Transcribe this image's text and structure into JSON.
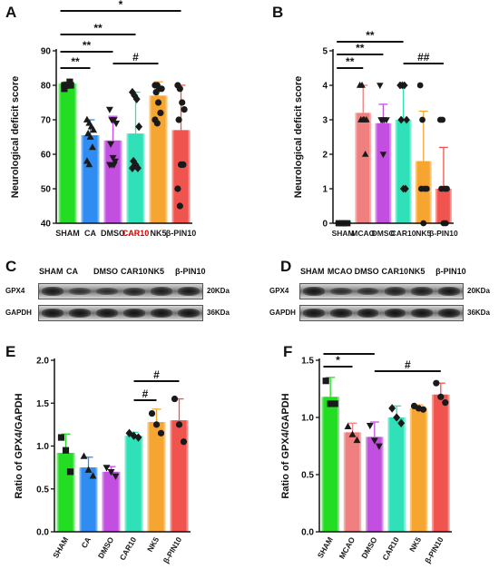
{
  "panels": {
    "A": "A",
    "B": "B",
    "C": "C",
    "D": "D",
    "E": "E",
    "F": "F"
  },
  "chart_data": [
    {
      "panel": "A",
      "type": "bar",
      "ylabel": "Neurological deficit score",
      "ylim": [
        40,
        90
      ],
      "yticks": [
        40,
        50,
        60,
        70,
        80,
        90
      ],
      "categories": [
        "SHAM",
        "CA",
        "DMSO",
        "CAR10",
        "NK5",
        "β-PIN10"
      ],
      "category_colors": [
        "#1a1a1a",
        "#1a1a1a",
        "#1a1a1a",
        "#cc0000",
        "#1a1a1a",
        "#1a1a1a"
      ],
      "colors": [
        "#22dd22",
        "#2f8cf0",
        "#c24fe0",
        "#2fe0b8",
        "#f7a531",
        "#f0544f"
      ],
      "values": [
        80.5,
        65.5,
        64,
        66,
        77,
        67
      ],
      "errors": [
        0.5,
        4.5,
        7,
        12,
        4,
        13
      ],
      "points": [
        [
          80,
          80,
          80,
          80,
          80,
          80,
          81,
          79
        ],
        [
          70,
          69,
          68,
          67,
          66,
          65,
          62,
          58,
          57
        ],
        [
          73,
          70,
          70,
          69,
          63,
          59,
          58,
          57,
          57,
          57
        ],
        [
          78,
          77,
          76,
          68,
          58,
          57,
          56,
          56
        ],
        [
          80,
          80,
          79,
          79,
          78,
          75,
          72,
          70,
          69
        ],
        [
          80,
          79,
          75,
          73,
          70,
          57,
          57,
          50,
          45
        ]
      ],
      "markers": [
        "square",
        "triangle",
        "inv-triangle",
        "diamond",
        "circle",
        "circle"
      ],
      "comparisons": [
        {
          "from": 0,
          "to": 1,
          "label": "**"
        },
        {
          "from": 0,
          "to": 2,
          "label": "**"
        },
        {
          "from": 2,
          "to": 4,
          "label": "#"
        },
        {
          "from": 0,
          "to": 3,
          "label": "**"
        },
        {
          "from": 0,
          "to": 5,
          "label": "*"
        }
      ]
    },
    {
      "panel": "B",
      "type": "bar",
      "ylabel": "Neurological deficit score",
      "ylim": [
        0,
        5
      ],
      "yticks": [
        0,
        1,
        2,
        3,
        4,
        5
      ],
      "categories": [
        "SHAM",
        "MCAO",
        "DMSO",
        "CAR10",
        "NK5",
        "β-PIN10"
      ],
      "category_colors": [
        "#1a1a1a",
        "#1a1a1a",
        "#1a1a1a",
        "#1a1a1a",
        "#1a1a1a",
        "#1a1a1a"
      ],
      "colors": [
        "#22dd22",
        "#f08080",
        "#c24fe0",
        "#2fe0b8",
        "#f7a531",
        "#f0544f"
      ],
      "values": [
        0.05,
        3.2,
        2.9,
        3.0,
        1.8,
        1.0
      ],
      "errors": [
        0,
        0.8,
        0.55,
        1.0,
        1.45,
        1.2
      ],
      "points": [
        [
          0,
          0,
          0,
          0
        ],
        [
          4,
          4,
          3,
          3,
          3,
          3,
          2
        ],
        [
          4,
          3,
          3,
          3,
          3,
          2
        ],
        [
          4,
          4,
          4,
          3,
          3,
          1,
          1
        ],
        [
          4,
          3,
          1,
          1,
          1,
          0
        ],
        [
          3,
          3,
          1,
          1,
          1,
          0,
          0
        ]
      ],
      "markers": [
        "square",
        "triangle",
        "inv-triangle",
        "diamond",
        "circle",
        "circle"
      ],
      "comparisons": [
        {
          "from": 0,
          "to": 1,
          "label": "**"
        },
        {
          "from": 0,
          "to": 2,
          "label": "**"
        },
        {
          "from": 3,
          "to": 5,
          "label": "##"
        },
        {
          "from": 0,
          "to": 3,
          "label": "**"
        }
      ]
    },
    {
      "panel": "E",
      "type": "bar",
      "ylabel": "Ratio of GPX4/GAPDH",
      "ylim": [
        0.0,
        2.0
      ],
      "yticks": [
        "0.0",
        "0.5",
        "1.0",
        "1.5",
        "2.0"
      ],
      "categories": [
        "SHAM",
        "CA",
        "DMSO",
        "CAR10",
        "NK5",
        "β-PIN10"
      ],
      "category_colors": [
        "#1a1a1a",
        "#1a1a1a",
        "#1a1a1a",
        "#1a1a1a",
        "#1a1a1a",
        "#1a1a1a"
      ],
      "colors": [
        "#22dd22",
        "#2f8cf0",
        "#c24fe0",
        "#2fe0b8",
        "#f7a531",
        "#f0544f"
      ],
      "values": [
        0.92,
        0.75,
        0.7,
        1.12,
        1.28,
        1.3
      ],
      "errors": [
        0.22,
        0.12,
        0.06,
        0.04,
        0.15,
        0.25
      ],
      "points": [
        [
          1.1,
          0.95,
          0.7
        ],
        [
          0.88,
          0.72,
          0.65
        ],
        [
          0.75,
          0.7,
          0.65
        ],
        [
          1.15,
          1.12,
          1.1
        ],
        [
          1.38,
          1.25,
          1.15
        ],
        [
          1.55,
          1.25,
          1.05
        ]
      ],
      "markers": [
        "square",
        "triangle",
        "inv-triangle",
        "diamond",
        "circle",
        "circle"
      ],
      "comparisons": [
        {
          "from": 3,
          "to": 4,
          "label": "#"
        },
        {
          "from": 3,
          "to": 5,
          "label": "#"
        }
      ]
    },
    {
      "panel": "F",
      "type": "bar",
      "ylabel": "Ratio of GPX4/GAPDH",
      "ylim": [
        0.0,
        1.5
      ],
      "yticks": [
        "0.0",
        "0.5",
        "1.0",
        "1.5"
      ],
      "categories": [
        "SHAM",
        "MCAO",
        "DMSO",
        "CAR10",
        "NK5",
        "β-PIN10"
      ],
      "category_colors": [
        "#1a1a1a",
        "#1a1a1a",
        "#1a1a1a",
        "#1a1a1a",
        "#1a1a1a",
        "#1a1a1a"
      ],
      "colors": [
        "#22dd22",
        "#f08080",
        "#c24fe0",
        "#2fe0b8",
        "#f7a531",
        "#f0544f"
      ],
      "values": [
        1.18,
        0.87,
        0.83,
        1.0,
        1.08,
        1.2
      ],
      "errors": [
        0.17,
        0.08,
        0.13,
        0.1,
        0.03,
        0.1
      ],
      "points": [
        [
          1.32,
          1.12,
          1.12
        ],
        [
          0.92,
          0.85,
          0.8
        ],
        [
          0.93,
          0.8,
          0.75
        ],
        [
          1.08,
          1.0,
          0.95
        ],
        [
          1.1,
          1.08,
          1.07
        ],
        [
          1.3,
          1.18,
          1.13
        ]
      ],
      "markers": [
        "square",
        "triangle",
        "inv-triangle",
        "diamond",
        "circle",
        "circle"
      ],
      "comparisons": [
        {
          "from": 0,
          "to": 1,
          "label": "*"
        },
        {
          "from": 0,
          "to": 2,
          "label": "*"
        },
        {
          "from": 2,
          "to": 5,
          "label": "#"
        }
      ]
    }
  ],
  "blots": [
    {
      "panel": "C",
      "lanes": [
        "SHAM",
        "CA",
        "DMSO",
        "CAR10",
        "NK5",
        "β-PIN10"
      ],
      "rows": [
        {
          "label": "GPX4",
          "size": "20KDa",
          "intensity": [
            0.9,
            0.55,
            0.6,
            0.75,
            0.85,
            0.9
          ]
        },
        {
          "label": "GAPDH",
          "size": "36KDa",
          "intensity": [
            1,
            1,
            1,
            1,
            1,
            1
          ]
        }
      ]
    },
    {
      "panel": "D",
      "lanes": [
        "SHAM",
        "MCAO",
        "DMSO",
        "CAR10",
        "NK5",
        "β-PIN10"
      ],
      "rows": [
        {
          "label": "GPX4",
          "size": "20KDa",
          "intensity": [
            0.95,
            0.6,
            0.65,
            0.8,
            0.85,
            0.95
          ]
        },
        {
          "label": "GAPDH",
          "size": "36KDa",
          "intensity": [
            1,
            1,
            1,
            1,
            1,
            1
          ]
        }
      ]
    }
  ]
}
